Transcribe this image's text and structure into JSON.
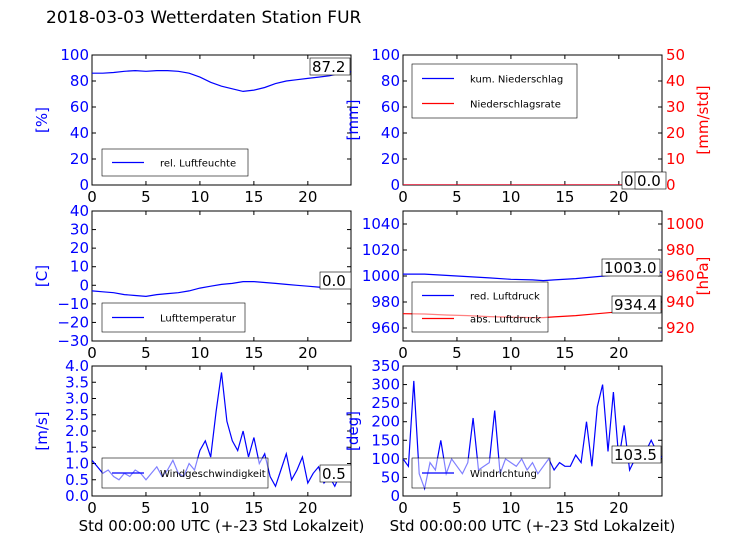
{
  "suptitle": "2018-03-03 Wetterdaten Station FUR",
  "colors": {
    "primary": "#0000ff",
    "secondary": "#ff0000",
    "axis": "#000000",
    "background": "#ffffff"
  },
  "chart_data": [
    {
      "type": "line",
      "panel": "humidity",
      "xlabel": "",
      "ylabel": "[%]",
      "xlim": [
        0,
        24
      ],
      "ylim": [
        0,
        100
      ],
      "yticks": [
        0,
        20,
        40,
        60,
        80,
        100
      ],
      "xticks": [
        0,
        5,
        10,
        15,
        20
      ],
      "legend_loc": "lower-left",
      "annotation": "87.2",
      "series": [
        {
          "name": "rel. Luftfeuchte",
          "color": "#0000ff",
          "x": [
            0,
            1,
            2,
            3,
            4,
            5,
            6,
            7,
            8,
            9,
            10,
            11,
            12,
            13,
            14,
            15,
            16,
            17,
            18,
            19,
            20,
            21,
            22,
            23,
            24
          ],
          "y": [
            86,
            86,
            86.5,
            87.5,
            88,
            87.5,
            88,
            88,
            87.5,
            86,
            83,
            79,
            76,
            74,
            72,
            73,
            75,
            78,
            80,
            81,
            82,
            83,
            84,
            86,
            87.2
          ]
        }
      ]
    },
    {
      "type": "line",
      "panel": "precipitation",
      "xlabel": "",
      "ylabel": "[mm]",
      "ylabel_right": "[mm/std]",
      "xlim": [
        0,
        24
      ],
      "ylim": [
        0,
        100
      ],
      "ylim_right": [
        0,
        50
      ],
      "yticks": [
        0,
        20,
        40,
        60,
        80,
        100
      ],
      "yticks_right": [
        0,
        10,
        20,
        30,
        40,
        50
      ],
      "xticks": [
        0,
        5,
        10,
        15,
        20
      ],
      "legend_loc": "upper-left",
      "annotations": [
        "0.0",
        "0.0"
      ],
      "series": [
        {
          "name": "kum. Niederschlag",
          "color": "#0000ff",
          "axis": "left",
          "x": [
            0,
            24
          ],
          "y": [
            0,
            0
          ]
        },
        {
          "name": "Niederschlagsrate",
          "color": "#ff0000",
          "axis": "right",
          "x": [
            0,
            24
          ],
          "y": [
            0,
            0
          ]
        }
      ]
    },
    {
      "type": "line",
      "panel": "temperature",
      "xlabel": "",
      "ylabel": "[C]",
      "xlim": [
        0,
        24
      ],
      "ylim": [
        -30,
        40
      ],
      "yticks": [
        -30,
        -20,
        -10,
        0,
        10,
        20,
        30,
        40
      ],
      "xticks": [
        0,
        5,
        10,
        15,
        20
      ],
      "legend_loc": "lower-left",
      "annotation": "0.0",
      "series": [
        {
          "name": "Lufttemperatur",
          "color": "#0000ff",
          "x": [
            0,
            1,
            2,
            3,
            4,
            5,
            6,
            7,
            8,
            9,
            10,
            11,
            12,
            13,
            14,
            15,
            16,
            17,
            18,
            19,
            20,
            21,
            22,
            23,
            24
          ],
          "y": [
            -3,
            -3.5,
            -4,
            -5,
            -5.5,
            -6,
            -5,
            -4.5,
            -4,
            -3,
            -1.5,
            -0.5,
            0.5,
            1,
            2,
            2,
            1.5,
            1,
            0.5,
            0,
            -0.5,
            -1,
            -1,
            -0.5,
            0
          ]
        }
      ]
    },
    {
      "type": "line",
      "panel": "pressure",
      "xlabel": "",
      "ylabel_right": "[hPa]",
      "xlim": [
        0,
        24
      ],
      "ylim": [
        950,
        1050
      ],
      "ylim_right": [
        910,
        1010
      ],
      "yticks": [
        960,
        980,
        1000,
        1020,
        1040
      ],
      "yticks_right": [
        920,
        940,
        960,
        980,
        1000
      ],
      "xticks": [
        0,
        5,
        10,
        15,
        20
      ],
      "legend_loc": "lower-left",
      "annotations": [
        "1003.0",
        "934.4"
      ],
      "series": [
        {
          "name": "red. Luftdruck",
          "color": "#0000ff",
          "axis": "left",
          "x": [
            0,
            2,
            4,
            6,
            8,
            10,
            12,
            13,
            14,
            16,
            18,
            20,
            22,
            24
          ],
          "y": [
            1001.5,
            1001.5,
            1000.5,
            999.5,
            998.5,
            997.5,
            997,
            996.5,
            997,
            998,
            999.5,
            1001,
            1002,
            1003
          ]
        },
        {
          "name": "abs. Luftdruck",
          "color": "#ff0000",
          "axis": "right",
          "x": [
            0,
            2,
            4,
            6,
            8,
            10,
            12,
            13,
            14,
            16,
            18,
            20,
            22,
            24
          ],
          "y": [
            931,
            930.8,
            930,
            929.5,
            928.8,
            928.3,
            928,
            928,
            928.5,
            929.5,
            931,
            932.5,
            933.8,
            934.4
          ]
        }
      ]
    },
    {
      "type": "line",
      "panel": "wind-speed",
      "xlabel": "Std 00:00:00 UTC (+-23 Std Lokalzeit)",
      "ylabel": "[m/s]",
      "xlim": [
        0,
        24
      ],
      "ylim": [
        0,
        4
      ],
      "yticks": [
        0,
        0.5,
        1,
        1.5,
        2,
        2.5,
        3,
        3.5,
        4
      ],
      "ytick_labels": [
        "0.0",
        "0.5",
        "1.0",
        "1.5",
        "2.0",
        "2.5",
        "3.0",
        "3.5",
        "4.0"
      ],
      "xticks": [
        0,
        5,
        10,
        15,
        20
      ],
      "legend_loc": "lower-left",
      "annotation": "0.5",
      "series": [
        {
          "name": "Windgeschwindigkeit",
          "color": "#0000ff",
          "x": [
            0,
            0.5,
            1,
            1.5,
            2,
            2.5,
            3,
            3.5,
            4,
            4.5,
            5,
            5.5,
            6,
            6.5,
            7,
            7.5,
            8,
            8.5,
            9,
            9.5,
            10,
            10.5,
            11,
            11.5,
            12,
            12.5,
            13,
            13.5,
            14,
            14.5,
            15,
            15.5,
            16,
            16.5,
            17,
            17.5,
            18,
            18.5,
            19,
            19.5,
            20,
            20.5,
            21,
            21.5,
            22,
            22.5,
            23,
            23.5,
            24
          ],
          "y": [
            1.1,
            0.9,
            0.7,
            0.8,
            0.6,
            0.5,
            0.7,
            0.6,
            0.8,
            0.7,
            0.5,
            0.7,
            0.9,
            0.6,
            0.8,
            1.1,
            0.7,
            0.6,
            1.0,
            0.8,
            1.4,
            1.7,
            1.2,
            2.6,
            3.8,
            2.3,
            1.7,
            1.4,
            2.0,
            1.2,
            1.8,
            1.0,
            1.3,
            0.6,
            0.3,
            0.8,
            1.3,
            0.5,
            0.8,
            1.2,
            0.4,
            0.7,
            0.9,
            0.4,
            0.6,
            0.3,
            0.7,
            0.8,
            0.5
          ]
        }
      ]
    },
    {
      "type": "line",
      "panel": "wind-direction",
      "xlabel": "Std 00:00:00 UTC (+-23 Std Lokalzeit)",
      "ylabel": "[deg]",
      "xlim": [
        0,
        24
      ],
      "ylim": [
        0,
        350
      ],
      "yticks": [
        0,
        50,
        100,
        150,
        200,
        250,
        300,
        350
      ],
      "xticks": [
        0,
        5,
        10,
        15,
        20
      ],
      "legend_loc": "lower-left",
      "annotation": "103.5",
      "series": [
        {
          "name": "Windrichtung",
          "color": "#0000ff",
          "x": [
            0,
            0.5,
            1,
            1.5,
            2,
            2.5,
            3,
            3.5,
            4,
            4.5,
            5,
            5.5,
            6,
            6.5,
            7,
            7.5,
            8,
            8.5,
            9,
            9.5,
            10,
            10.5,
            11,
            11.5,
            12,
            12.5,
            13,
            13.5,
            14,
            14.5,
            15,
            15.5,
            16,
            16.5,
            17,
            17.5,
            18,
            18.5,
            19,
            19.5,
            20,
            20.5,
            21,
            21.5,
            22,
            22.5,
            23,
            23.5,
            24
          ],
          "y": [
            100,
            80,
            310,
            60,
            20,
            90,
            70,
            150,
            60,
            100,
            80,
            60,
            90,
            210,
            70,
            80,
            90,
            230,
            60,
            100,
            90,
            80,
            100,
            70,
            90,
            60,
            80,
            100,
            70,
            90,
            80,
            80,
            110,
            90,
            200,
            80,
            240,
            300,
            120,
            280,
            100,
            190,
            70,
            100,
            110,
            120,
            150,
            120,
            103.5
          ]
        }
      ]
    }
  ]
}
